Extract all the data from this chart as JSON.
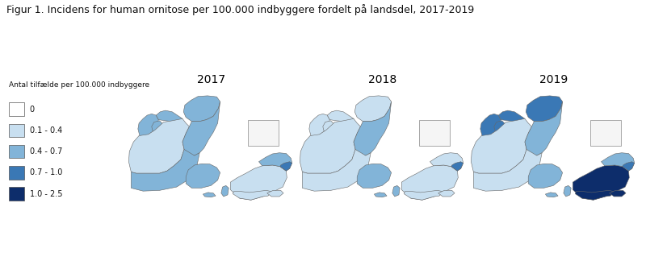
{
  "title": "Figur 1. Incidens for human ornitose per 100.000 indbyggere fordelt på landsdel, 2017-2019",
  "legend_title": "Antal tilfælde per 100.000 indbyggere",
  "legend_labels": [
    "0",
    "0.1 - 0.4",
    "0.4 - 0.7",
    "0.7 - 1.0",
    "1.0 - 2.5"
  ],
  "legend_colors": [
    "#ffffff",
    "#c8dff0",
    "#82b4d8",
    "#3a78b5",
    "#0d2d6b"
  ],
  "years": [
    "2017",
    "2018",
    "2019"
  ],
  "background_color": "#ffffff",
  "border_color": "#666666",
  "border_width": 0.4,
  "incidence": {
    "2017": {
      "nordjylland": "#82b4d8",
      "osterjylland": "#82b4d8",
      "vesterjylland": "#c8dff0",
      "sydjylland": "#82b4d8",
      "fyn": "#82b4d8",
      "sjaelland": "#c8dff0",
      "nordsjaelland": "#82b4d8",
      "kbh": "#3a78b5",
      "bornholm": "#ffffff"
    },
    "2018": {
      "nordjylland": "#c8dff0",
      "osterjylland": "#82b4d8",
      "vesterjylland": "#c8dff0",
      "sydjylland": "#c8dff0",
      "fyn": "#82b4d8",
      "sjaelland": "#c8dff0",
      "nordsjaelland": "#c8dff0",
      "kbh": "#3a78b5",
      "bornholm": "#ffffff"
    },
    "2019": {
      "nordjylland": "#3a78b5",
      "osterjylland": "#82b4d8",
      "vesterjylland": "#c8dff0",
      "sydjylland": "#c8dff0",
      "fyn": "#82b4d8",
      "sjaelland": "#0d2d6b",
      "nordsjaelland": "#82b4d8",
      "kbh": "#3a78b5",
      "bornholm": "#3a78b5"
    }
  }
}
